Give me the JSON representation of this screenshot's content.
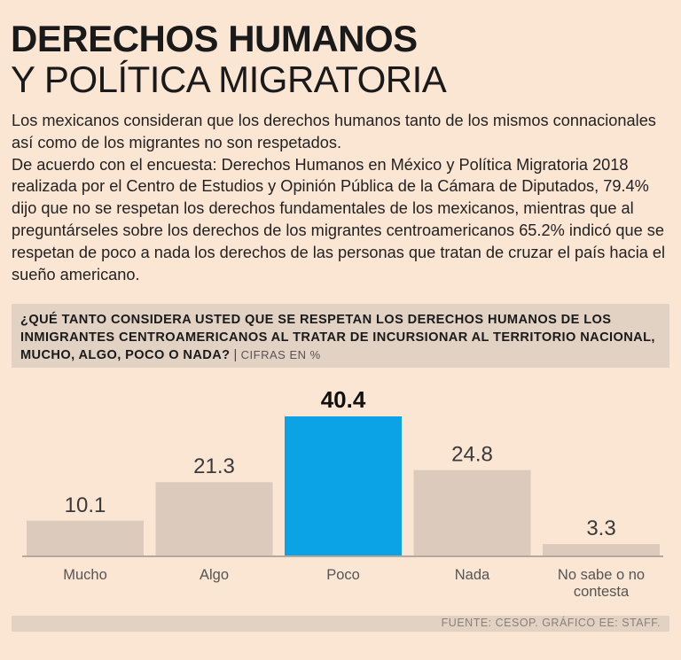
{
  "header": {
    "title_line1": "DERECHOS HUMANOS",
    "title_line2": "Y POLÍTICA MIGRATORIA"
  },
  "intro": {
    "paragraph1": "Los mexicanos consideran que los derechos humanos tanto de los mismos connacionales así como de los migrantes no son respetados.",
    "paragraph2": "De acuerdo con el encuesta: Derechos Humanos en México y Política Migratoria 2018 realizada por el Centro de Estudios y Opinión Pública de la Cámara de Diputados, 79.4% dijo que no se respetan los derechos fundamentales de los mexicanos, mientras que al preguntárseles sobre los derechos de los migrantes centroamericanos 65.2% indicó que se respetan de poco a nada los derechos de las personas que tratan de cruzar el país hacia el sueño americano."
  },
  "question": {
    "text": "¿Qué tanto considera usted que se respetan los derechos humanos de los inmigrantes centroamericanos al tratar de incursionar al territorio nacional, mucho, algo, poco o nada?",
    "separator": "|",
    "units": "Cifras en %"
  },
  "chart_data": {
    "type": "bar",
    "title": "¿Qué tanto considera usted que se respetan los derechos humanos de los inmigrantes centroamericanos al tratar de incursionar al territorio nacional, mucho, algo, poco o nada?",
    "categories": [
      "Mucho",
      "Algo",
      "Poco",
      "Nada",
      "No sabe o no contesta"
    ],
    "values": [
      10.1,
      21.3,
      40.4,
      24.8,
      3.3
    ],
    "value_labels": [
      "10.1",
      "21.3",
      "40.4",
      "24.8",
      "3.3"
    ],
    "highlight_index": 2,
    "xlabel": "",
    "ylabel": "Cifras en %",
    "ylim": [
      0,
      40.4
    ],
    "grid": false,
    "colors": {
      "bar": "#dccabc",
      "highlight": "#0ba3e6",
      "baseline": "#9e948c",
      "label": "#3a3a3a",
      "category": "#555555"
    }
  },
  "footer": {
    "source": "Fuente: CESOP.  Gráfico EE: STAFF."
  }
}
